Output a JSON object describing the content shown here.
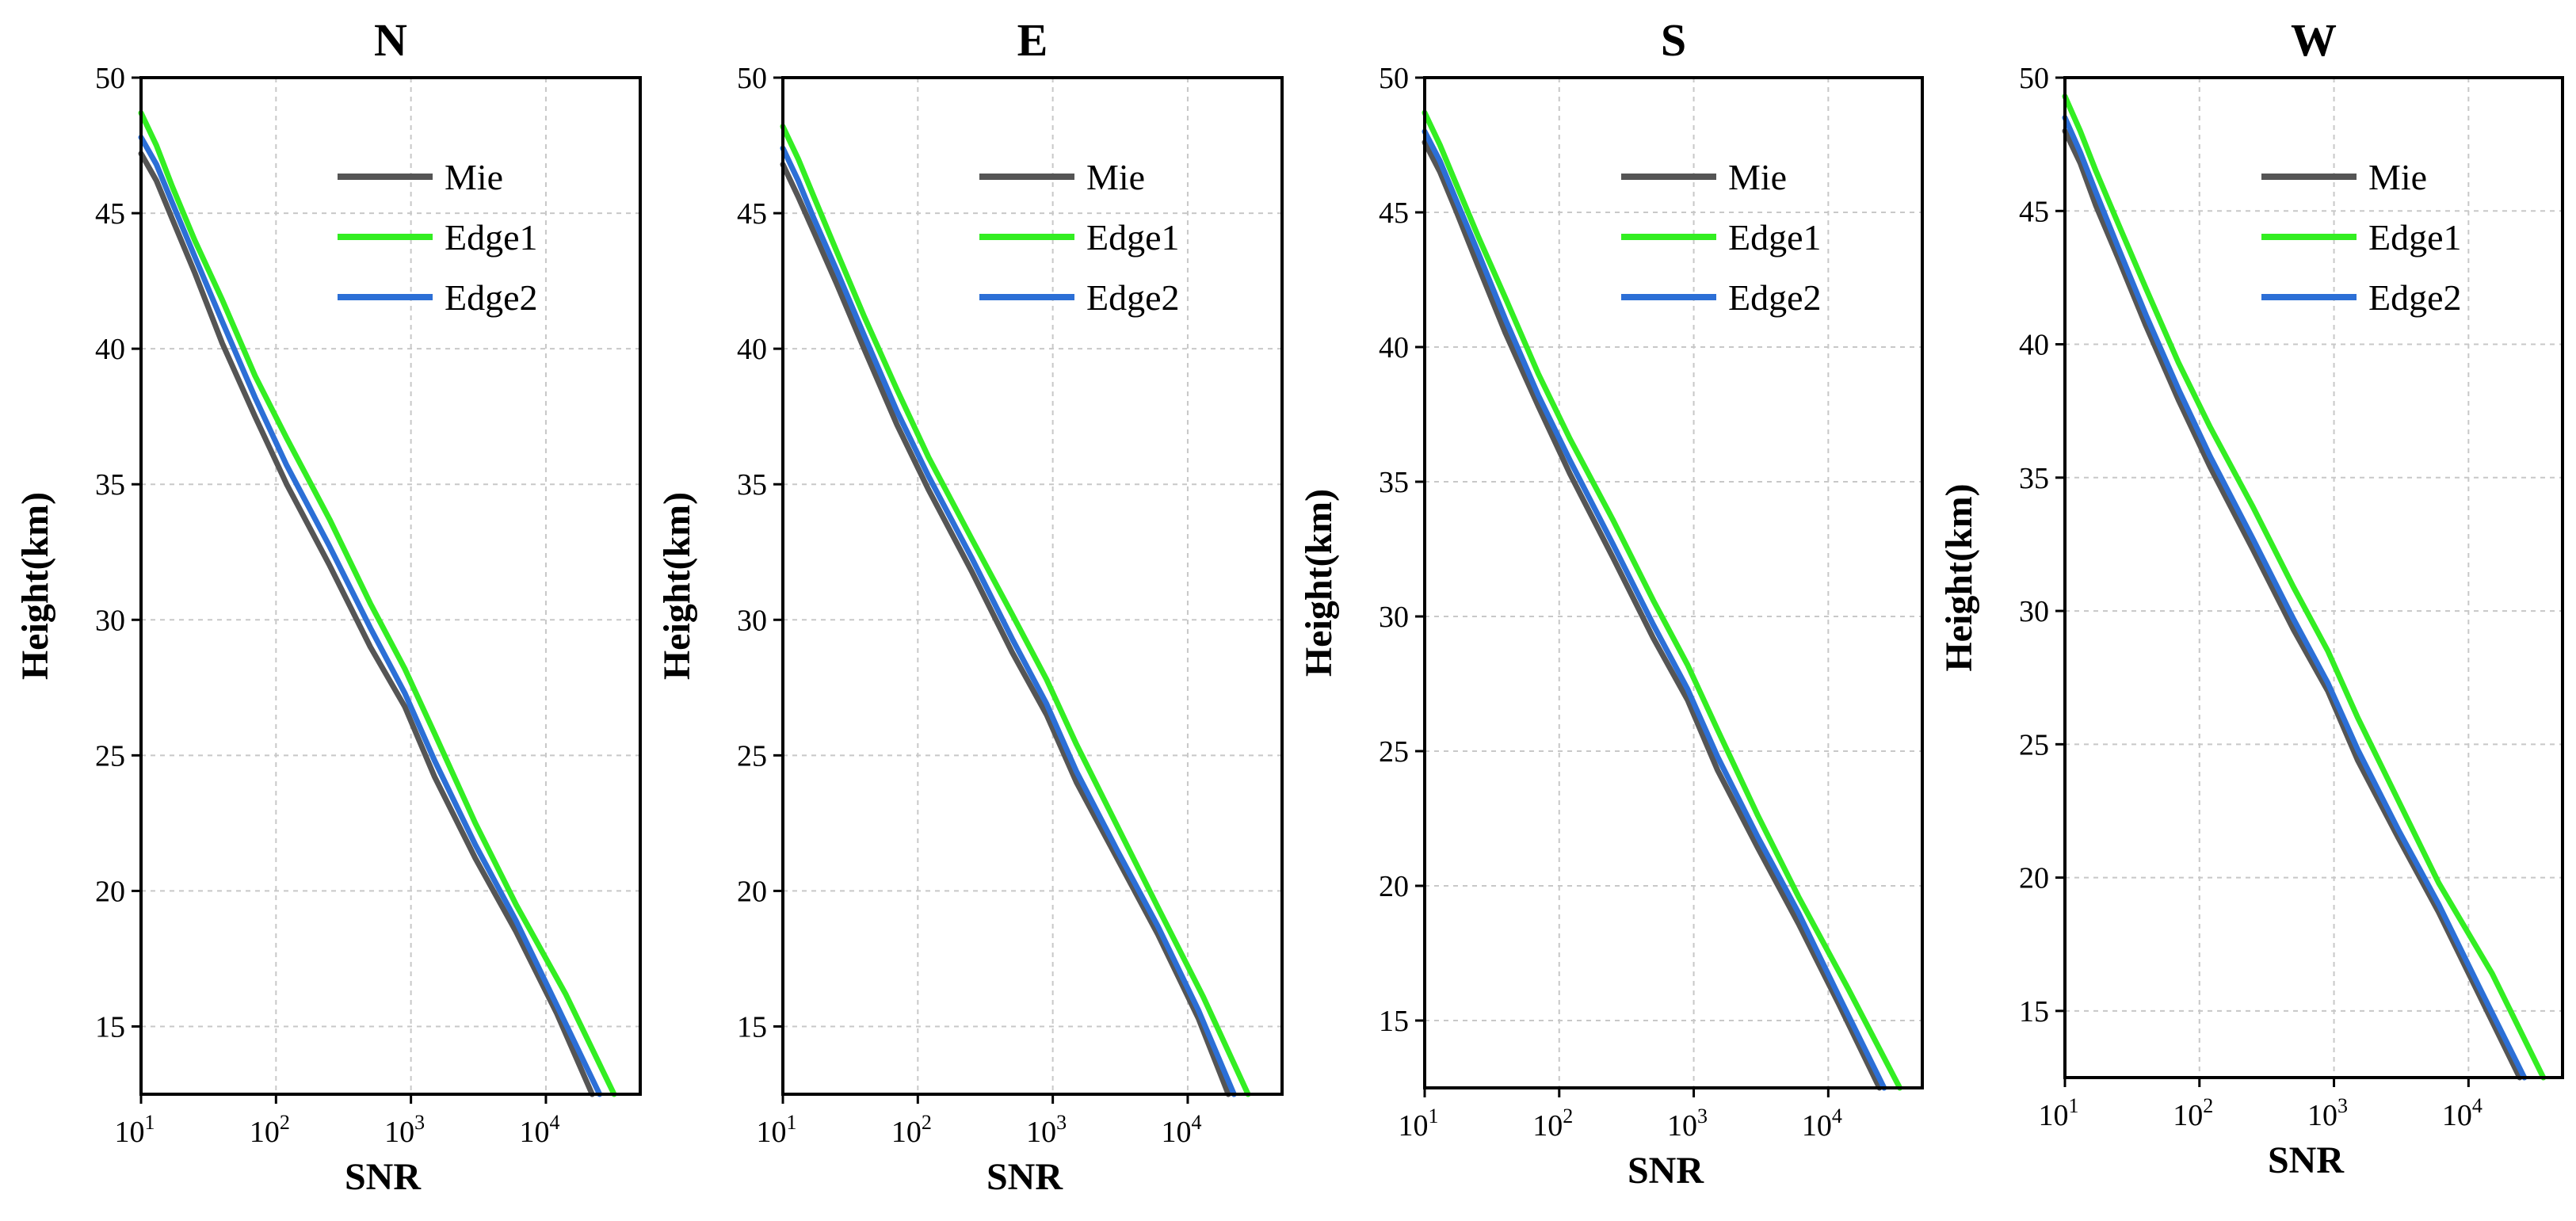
{
  "figure": {
    "xlabel": "SNR",
    "ylabel": "Height(km)"
  },
  "legend": [
    {
      "name": "Mie",
      "color": "#555555"
    },
    {
      "name": "Edge1",
      "color": "#33ee22"
    },
    {
      "name": "Edge2",
      "color": "#2c6fd6"
    }
  ],
  "chart_data": [
    {
      "type": "line",
      "title": "N",
      "xlabel": "SNR",
      "ylabel": "Height(km)",
      "xscale": "log",
      "xlim": [
        10,
        50000
      ],
      "ylim": [
        12.5,
        50
      ],
      "xticks": [
        10,
        100,
        1000,
        10000
      ],
      "xtick_labels": [
        {
          "base": "10",
          "exp": "1"
        },
        {
          "base": "10",
          "exp": "2"
        },
        {
          "base": "10",
          "exp": "3"
        },
        {
          "base": "10",
          "exp": "4"
        }
      ],
      "yticks": [
        15,
        20,
        25,
        30,
        35,
        40,
        45,
        50
      ],
      "grid": true,
      "legend_position": "top-right",
      "series": [
        {
          "name": "Mie",
          "color": "#555555",
          "x": [
            10,
            13,
            17,
            25,
            40,
            70,
            120,
            250,
            500,
            900,
            1500,
            3000,
            6000,
            12000,
            22000
          ],
          "y": [
            47.2,
            46.2,
            44.8,
            42.8,
            40.2,
            37.5,
            35,
            32,
            29,
            26.8,
            24.2,
            21.2,
            18.5,
            15.5,
            12.5
          ]
        },
        {
          "name": "Edge1",
          "color": "#33ee22",
          "x": [
            10,
            13,
            17,
            25,
            40,
            70,
            120,
            250,
            500,
            900,
            1500,
            3000,
            6000,
            14000,
            32000
          ],
          "y": [
            48.7,
            47.5,
            46,
            44,
            41.8,
            39,
            36.7,
            33.7,
            30.6,
            28.2,
            25.8,
            22.5,
            19.5,
            16.2,
            12.5
          ]
        },
        {
          "name": "Edge2",
          "color": "#2c6fd6",
          "x": [
            10,
            13,
            17,
            25,
            40,
            70,
            120,
            250,
            500,
            900,
            1500,
            3000,
            6000,
            12000,
            25000
          ],
          "y": [
            47.8,
            46.8,
            45.4,
            43.4,
            41,
            38.2,
            35.7,
            32.7,
            29.7,
            27.3,
            24.8,
            21.7,
            18.9,
            15.8,
            12.5
          ]
        }
      ]
    },
    {
      "type": "line",
      "title": "E",
      "xlabel": "SNR",
      "ylabel": "Height(km)",
      "xscale": "log",
      "xlim": [
        10,
        50000
      ],
      "ylim": [
        12.5,
        50
      ],
      "xticks": [
        10,
        100,
        1000,
        10000
      ],
      "xtick_labels": [
        {
          "base": "10",
          "exp": "1"
        },
        {
          "base": "10",
          "exp": "2"
        },
        {
          "base": "10",
          "exp": "3"
        },
        {
          "base": "10",
          "exp": "4"
        }
      ],
      "yticks": [
        15,
        20,
        25,
        30,
        35,
        40,
        45,
        50
      ],
      "grid": true,
      "legend_position": "top-right",
      "series": [
        {
          "name": "Mie",
          "color": "#555555",
          "x": [
            10,
            13,
            17,
            25,
            40,
            70,
            120,
            250,
            500,
            900,
            1500,
            3000,
            6000,
            12000,
            20000
          ],
          "y": [
            46.8,
            45.6,
            44.3,
            42.4,
            40,
            37.2,
            34.8,
            31.8,
            28.8,
            26.5,
            24,
            21.2,
            18.4,
            15.3,
            12.5
          ]
        },
        {
          "name": "Edge1",
          "color": "#33ee22",
          "x": [
            10,
            13,
            17,
            25,
            40,
            70,
            120,
            250,
            500,
            900,
            1500,
            3000,
            6000,
            13000,
            28000
          ],
          "y": [
            48.2,
            47,
            45.6,
            43.6,
            41.2,
            38.5,
            36,
            33,
            30.2,
            27.8,
            25.4,
            22.4,
            19.4,
            16.1,
            12.5
          ]
        },
        {
          "name": "Edge2",
          "color": "#2c6fd6",
          "x": [
            10,
            13,
            17,
            25,
            40,
            70,
            120,
            250,
            500,
            900,
            1500,
            3000,
            6000,
            12000,
            22000
          ],
          "y": [
            47.4,
            46.2,
            44.8,
            42.9,
            40.5,
            37.7,
            35.3,
            32.3,
            29.3,
            26.9,
            24.4,
            21.5,
            18.7,
            15.6,
            12.5
          ]
        }
      ]
    },
    {
      "type": "line",
      "title": "S",
      "xlabel": "SNR",
      "ylabel": "Height(km)",
      "xscale": "log",
      "xlim": [
        10,
        50000
      ],
      "ylim": [
        12.5,
        50
      ],
      "xticks": [
        10,
        100,
        1000,
        10000
      ],
      "xtick_labels": [
        {
          "base": "10",
          "exp": "1"
        },
        {
          "base": "10",
          "exp": "2"
        },
        {
          "base": "10",
          "exp": "3"
        },
        {
          "base": "10",
          "exp": "4"
        }
      ],
      "yticks": [
        15,
        20,
        25,
        30,
        35,
        40,
        45,
        50
      ],
      "grid": true,
      "legend_position": "top-right",
      "series": [
        {
          "name": "Mie",
          "color": "#555555",
          "x": [
            10,
            13,
            17,
            25,
            40,
            70,
            120,
            250,
            500,
            900,
            1500,
            3000,
            6000,
            12000,
            24000
          ],
          "y": [
            47.6,
            46.5,
            45.1,
            43,
            40.5,
            37.8,
            35.3,
            32.2,
            29.2,
            26.9,
            24.3,
            21.4,
            18.6,
            15.6,
            12.5
          ]
        },
        {
          "name": "Edge1",
          "color": "#33ee22",
          "x": [
            10,
            13,
            17,
            25,
            40,
            70,
            120,
            250,
            500,
            900,
            1500,
            3000,
            6000,
            14000,
            34000
          ],
          "y": [
            48.7,
            47.5,
            46.1,
            44.1,
            41.8,
            39,
            36.6,
            33.6,
            30.6,
            28.2,
            25.8,
            22.6,
            19.6,
            16.2,
            12.5
          ]
        },
        {
          "name": "Edge2",
          "color": "#2c6fd6",
          "x": [
            10,
            13,
            17,
            25,
            40,
            70,
            120,
            250,
            500,
            900,
            1500,
            3000,
            6000,
            12000,
            26000
          ],
          "y": [
            48,
            46.9,
            45.5,
            43.5,
            41,
            38.2,
            35.8,
            32.7,
            29.7,
            27.3,
            24.8,
            21.8,
            19,
            15.9,
            12.5
          ]
        }
      ]
    },
    {
      "type": "line",
      "title": "W",
      "xlabel": "SNR",
      "ylabel": "Height(km)",
      "xscale": "log",
      "xlim": [
        10,
        50000
      ],
      "ylim": [
        12.5,
        50
      ],
      "xticks": [
        10,
        100,
        1000,
        10000
      ],
      "xtick_labels": [
        {
          "base": "10",
          "exp": "1"
        },
        {
          "base": "10",
          "exp": "2"
        },
        {
          "base": "10",
          "exp": "3"
        },
        {
          "base": "10",
          "exp": "4"
        }
      ],
      "yticks": [
        15,
        20,
        25,
        30,
        35,
        40,
        45,
        50
      ],
      "grid": true,
      "legend_position": "top-right",
      "series": [
        {
          "name": "Mie",
          "color": "#555555",
          "x": [
            10,
            13,
            17,
            25,
            40,
            70,
            120,
            250,
            500,
            900,
            1500,
            3000,
            6000,
            12000,
            24000
          ],
          "y": [
            48,
            46.8,
            45.2,
            43.2,
            40.7,
            37.9,
            35.4,
            32.3,
            29.3,
            27,
            24.4,
            21.5,
            18.7,
            15.6,
            12.5
          ]
        },
        {
          "name": "Edge1",
          "color": "#33ee22",
          "x": [
            10,
            13,
            17,
            25,
            40,
            70,
            120,
            250,
            500,
            900,
            1500,
            3000,
            6000,
            15000,
            36000
          ],
          "y": [
            49.3,
            48,
            46.5,
            44.5,
            42.1,
            39.3,
            36.9,
            33.9,
            30.9,
            28.5,
            26,
            22.9,
            19.8,
            16.4,
            12.5
          ]
        },
        {
          "name": "Edge2",
          "color": "#2c6fd6",
          "x": [
            10,
            13,
            17,
            25,
            40,
            70,
            120,
            250,
            500,
            900,
            1500,
            3000,
            6000,
            12000,
            26000
          ],
          "y": [
            48.5,
            47.2,
            45.7,
            43.6,
            41.1,
            38.3,
            35.8,
            32.7,
            29.7,
            27.3,
            24.8,
            21.8,
            19,
            15.9,
            12.5
          ]
        }
      ]
    }
  ]
}
